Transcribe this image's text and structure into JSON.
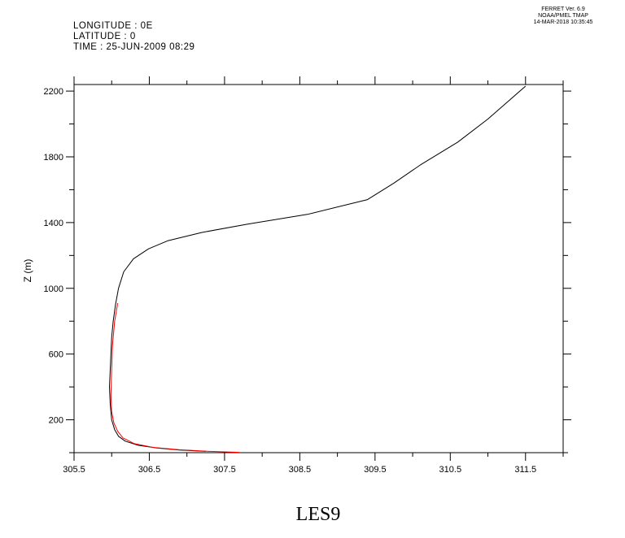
{
  "header": {
    "longitude": "LONGITUDE : 0E",
    "latitude": "LATITUDE : 0",
    "time": "TIME : 25-JUN-2009 08:29"
  },
  "stamp": {
    "line1": "FERRET Ver. 6.9",
    "line2": "NOAA/PMEL TMAP",
    "line3": "14-MAR-2018 10:35:45"
  },
  "caption": "LES9",
  "chart_data": {
    "type": "line",
    "title": "",
    "xlabel": "",
    "ylabel": "Z (m)",
    "xlim": [
      305.5,
      312.0
    ],
    "ylim": [
      0,
      2240
    ],
    "x_ticks": [
      305.5,
      306.5,
      307.5,
      308.5,
      309.5,
      310.5,
      311.5
    ],
    "x_tick_labels": [
      "305.5",
      "306.5",
      "307.5",
      "308.5",
      "309.5",
      "310.5",
      "311.5"
    ],
    "y_ticks": [
      200,
      600,
      1000,
      1400,
      1800,
      2200
    ],
    "y_tick_labels": [
      "200",
      "600",
      "1000",
      "1400",
      "1800",
      "2200"
    ],
    "grid": false,
    "series": [
      {
        "color": "#000000",
        "points": [
          [
            307.25,
            8
          ],
          [
            306.9,
            16
          ],
          [
            306.6,
            28
          ],
          [
            306.35,
            45
          ],
          [
            306.18,
            70
          ],
          [
            306.09,
            100
          ],
          [
            306.04,
            140
          ],
          [
            306.0,
            200
          ],
          [
            305.98,
            300
          ],
          [
            305.97,
            400
          ],
          [
            305.98,
            500
          ],
          [
            305.99,
            600
          ],
          [
            306.0,
            700
          ],
          [
            306.02,
            800
          ],
          [
            306.05,
            900
          ],
          [
            306.09,
            1000
          ],
          [
            306.16,
            1100
          ],
          [
            306.29,
            1180
          ],
          [
            306.49,
            1240
          ],
          [
            306.75,
            1290
          ],
          [
            307.2,
            1340
          ],
          [
            307.8,
            1390
          ],
          [
            308.6,
            1450
          ],
          [
            309.4,
            1540
          ],
          [
            309.75,
            1640
          ],
          [
            310.1,
            1750
          ],
          [
            310.6,
            1890
          ],
          [
            311.0,
            2030
          ],
          [
            311.5,
            2230
          ]
        ]
      },
      {
        "color": "#ff0000",
        "points": [
          [
            307.7,
            2
          ],
          [
            307.3,
            8
          ],
          [
            306.9,
            18
          ],
          [
            306.55,
            32
          ],
          [
            306.3,
            55
          ],
          [
            306.15,
            90
          ],
          [
            306.08,
            130
          ],
          [
            306.03,
            180
          ],
          [
            306.0,
            250
          ],
          [
            305.99,
            350
          ],
          [
            306.0,
            500
          ],
          [
            306.01,
            650
          ],
          [
            306.04,
            800
          ],
          [
            306.08,
            910
          ]
        ]
      }
    ]
  }
}
